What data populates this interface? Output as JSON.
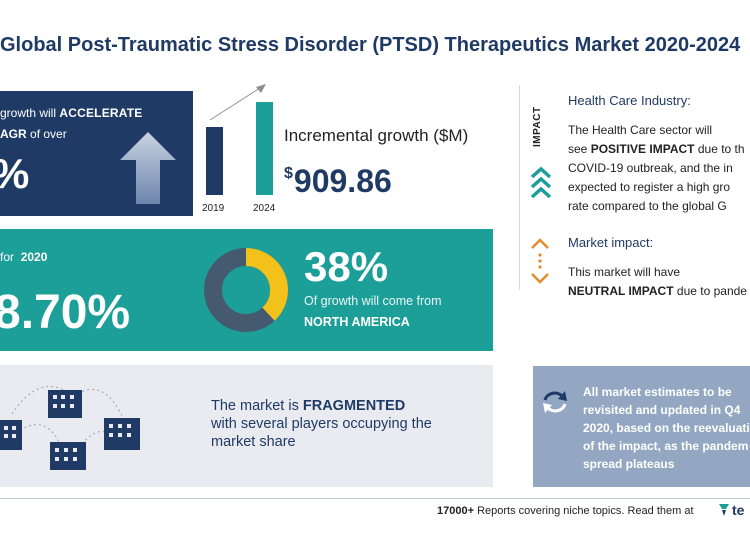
{
  "title": "Global Post-Traumatic Stress Disorder (PTSD) Therapeutics Market 2020-2024",
  "growth_box": {
    "line1_prefix": "growth will",
    "line1_bold": "ACCELERATE",
    "line2_bold": "AGR",
    "line2_suffix": "of over",
    "value": "%"
  },
  "incremental": {
    "years": [
      "2019",
      "2024"
    ],
    "label": "Incremental growth ($M)",
    "currency": "$",
    "value": "909.86"
  },
  "yoy": {
    "prefix": "for",
    "year": "2020",
    "value": "8.70%"
  },
  "region": {
    "share": 0.38,
    "percent": "38%",
    "text": "Of growth will come from",
    "name": "NORTH AMERICA",
    "colors": {
      "share": "#f2c21b",
      "rest": "#455a6f",
      "inner": "#1c9e99"
    }
  },
  "fragmented": {
    "prefix": "The market is",
    "bold": "FRAGMENTED",
    "line2": "with several players occupying the",
    "line3": "market share"
  },
  "impact_label": "IMPACT",
  "health_care": {
    "title": "Health Care Industry:",
    "line1": "The Health Care sector will",
    "line2_prefix": "see",
    "line2_bold": "POSITIVE IMPACT",
    "line2_suffix": "due to th",
    "line3": "COVID-19 outbreak, and the in",
    "line4": "expected to register a high gro",
    "line5": "rate compared to the global G"
  },
  "market_impact": {
    "title": "Market impact:",
    "line1": "This market will have",
    "line2_bold": "NEUTRAL IMPACT",
    "line2_suffix": "due to pande"
  },
  "note": {
    "line1": "All market estimates to be",
    "line2": "revisited and updated in Q4",
    "line3": "2020, based on the reevaluatio",
    "line4": "of the impact, as the pandem",
    "line5": "spread plateaus"
  },
  "footer": {
    "count": "17000+",
    "text": "Reports covering niche topics. Read them at",
    "logo": "te"
  },
  "colors": {
    "navy": "#1f3a64",
    "teal": "#1c9e99",
    "grey_box": "#e9ebf1",
    "note_box": "#93a7c3"
  }
}
